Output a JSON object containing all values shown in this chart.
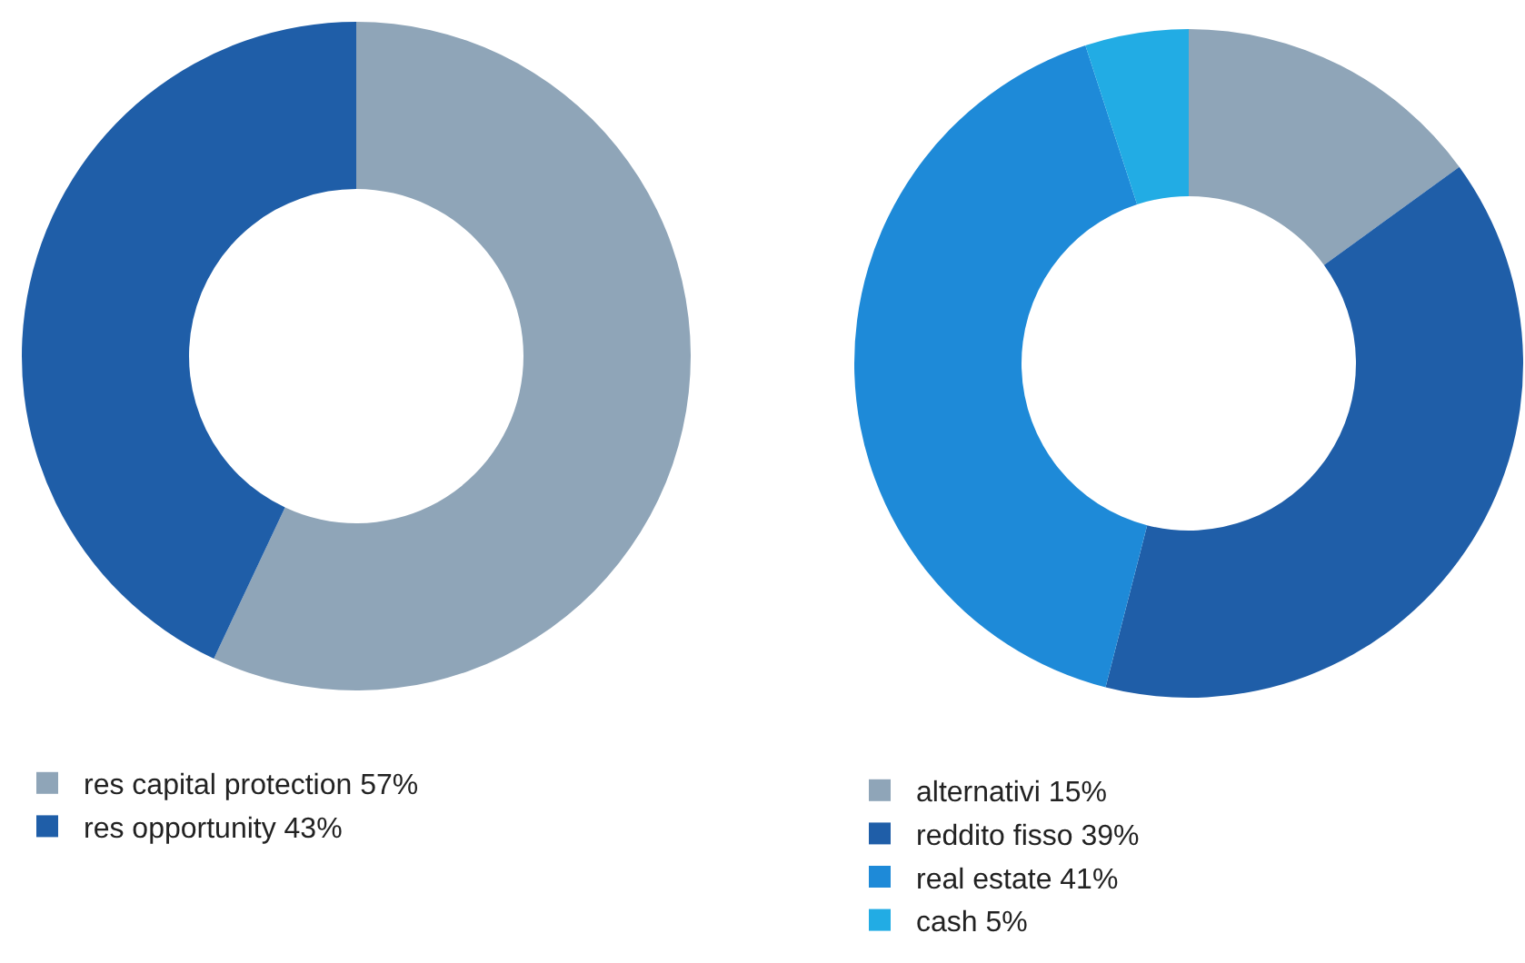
{
  "chart_data": [
    {
      "type": "donut",
      "categories": [
        "res capital protection",
        "res opportunity"
      ],
      "values": [
        57,
        43
      ],
      "colors": [
        "#8fa5b8",
        "#1f5ea8"
      ],
      "value_labels": [
        "57%",
        "43%"
      ],
      "legend": "bottom"
    },
    {
      "type": "donut",
      "categories": [
        "alternativi",
        "reddito fisso",
        "real estate",
        "cash"
      ],
      "values": [
        15,
        39,
        41,
        5
      ],
      "colors": [
        "#8fa5b8",
        "#1f5ea8",
        "#1e8ad8",
        "#22ace4"
      ],
      "value_labels": [
        "15%",
        "39%",
        "41%",
        "5%"
      ],
      "legend": "bottom"
    }
  ]
}
